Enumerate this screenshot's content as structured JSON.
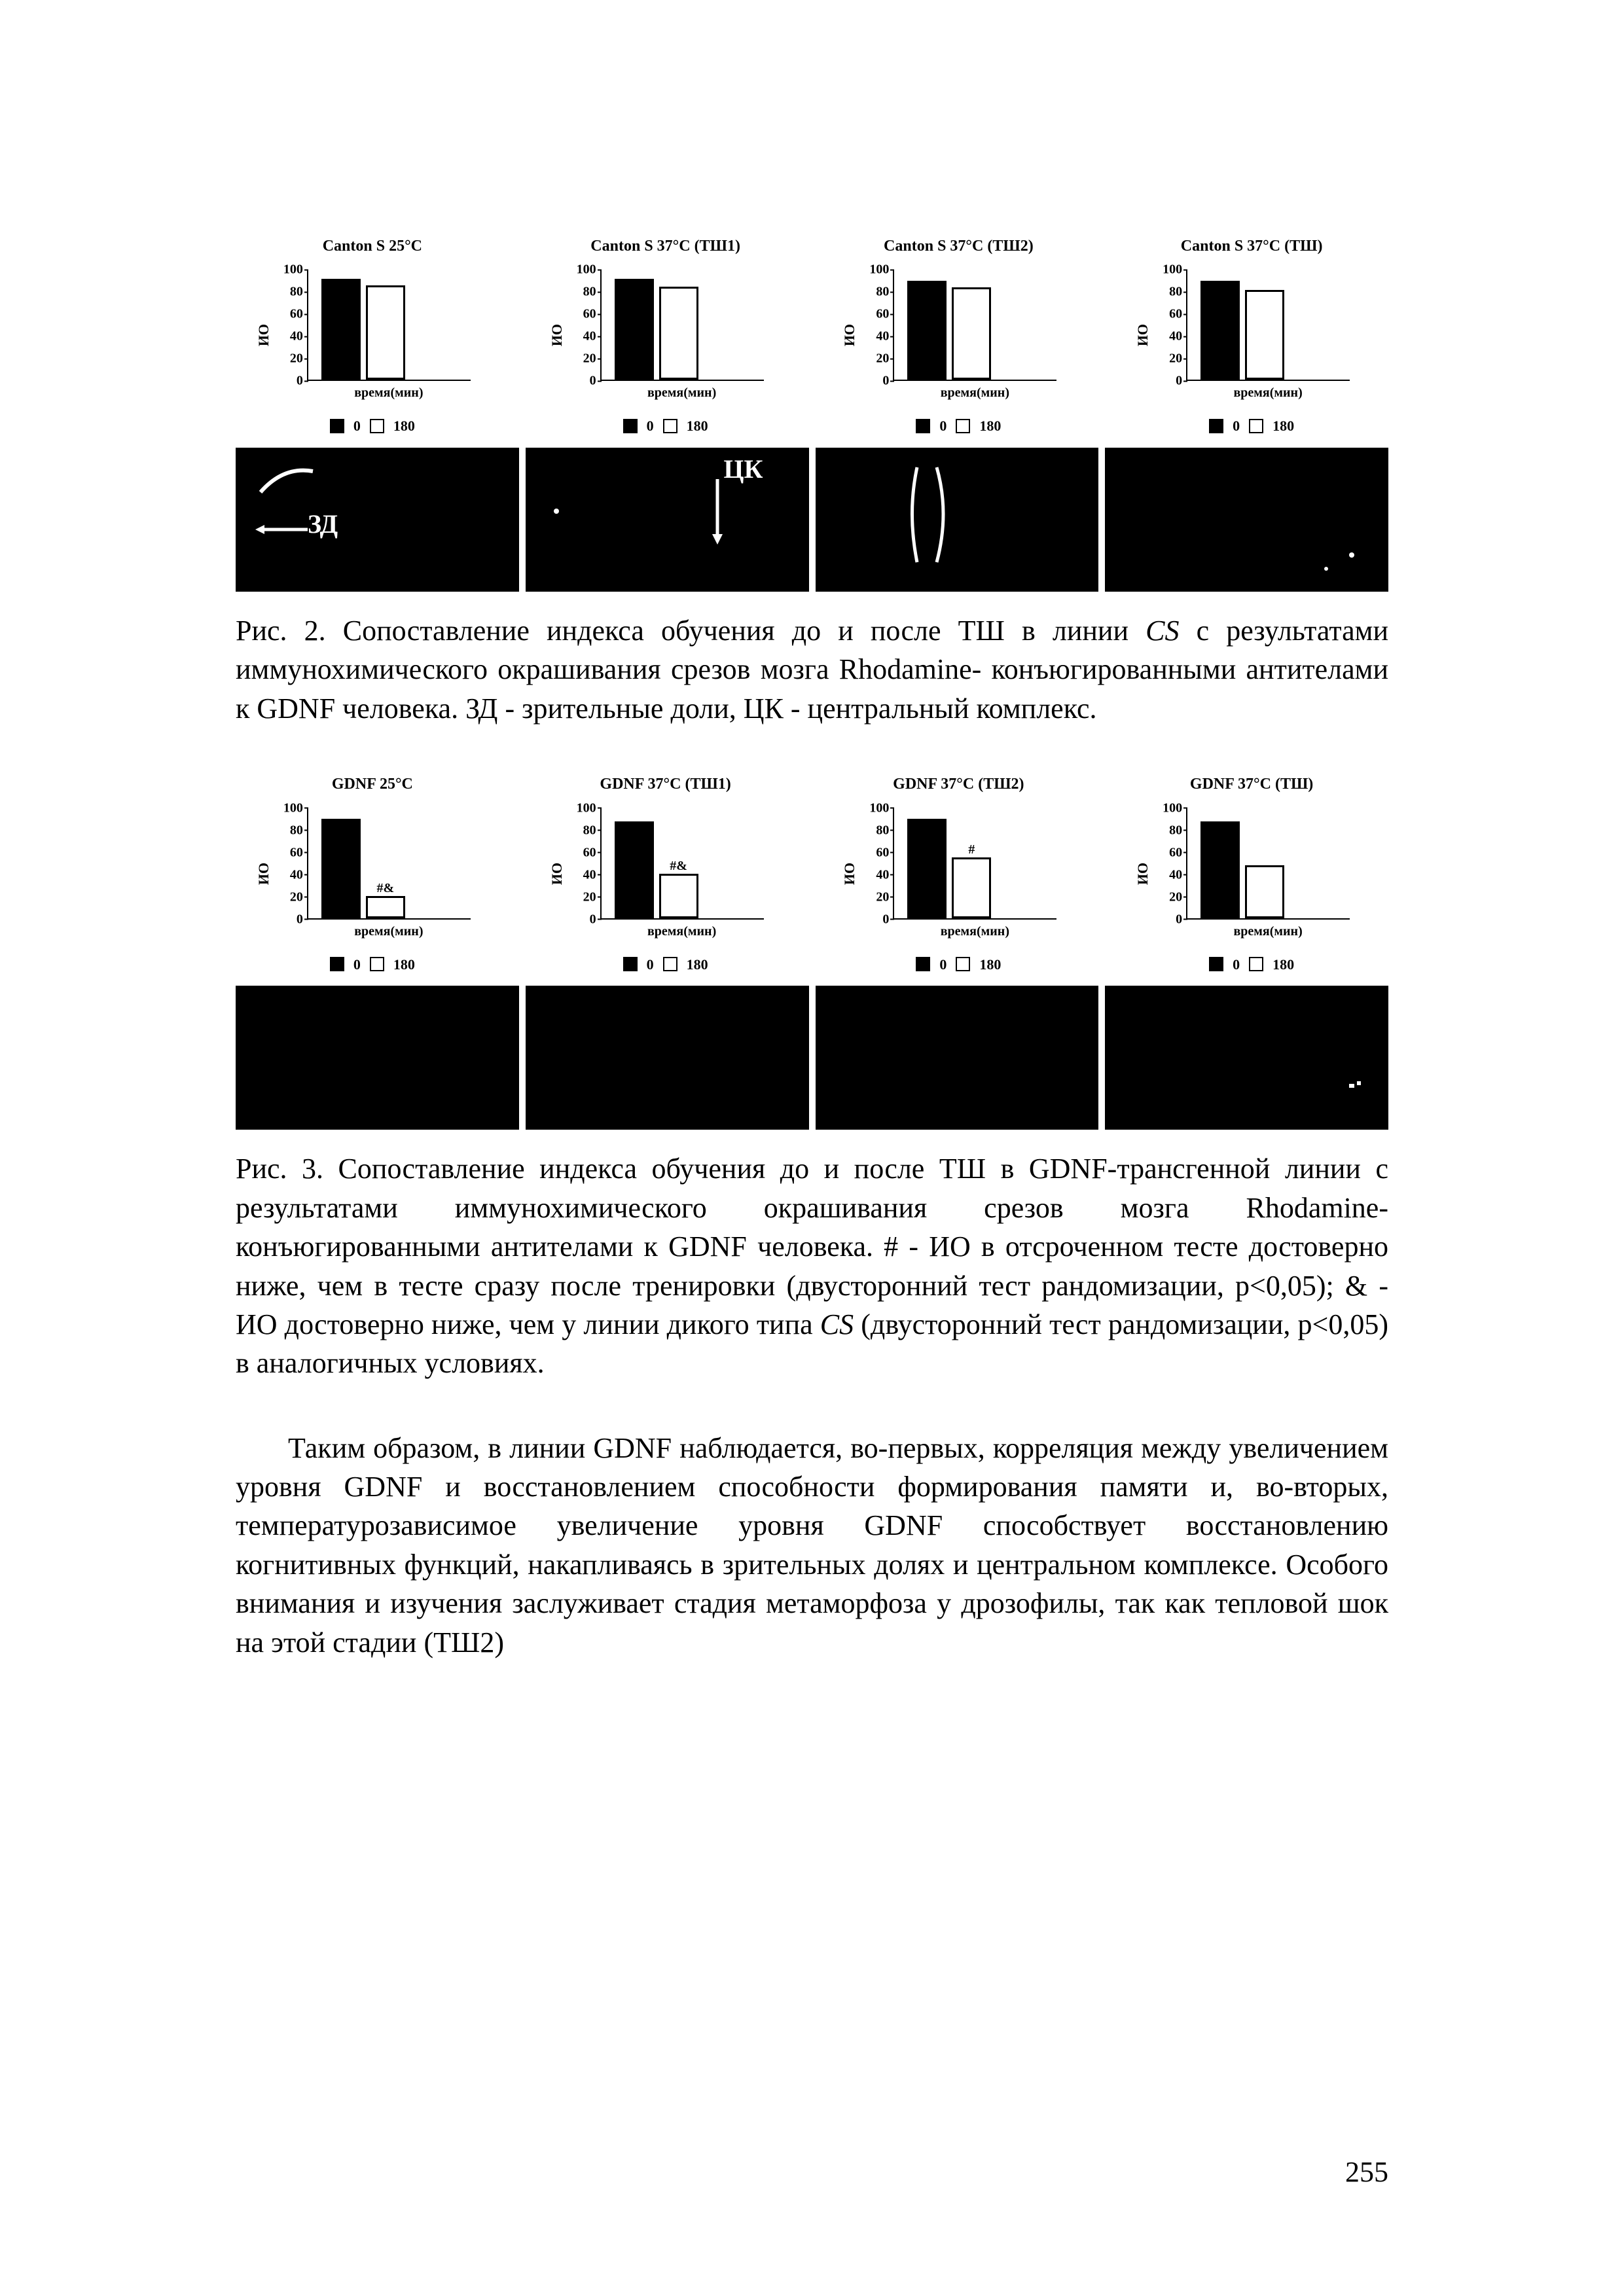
{
  "colors": {
    "page_bg": "#ffffff",
    "text": "#000000",
    "bar_outline": "#000000",
    "bar_fill_0": "#000000",
    "bar_fill_180": "#ffffff",
    "micro_bg": "#000000",
    "micro_text": "#ffffff"
  },
  "typography": {
    "body_family": "Times New Roman",
    "body_size_pt": 33,
    "panel_title_size_pt": 18,
    "tick_size_pt": 15,
    "axis_label_size_pt": 16
  },
  "figure2": {
    "panels": [
      {
        "title": "Canton S 25°C",
        "type": "bar",
        "ylabel": "ИО",
        "xlabel": "время(мин)",
        "ylim": [
          0,
          100
        ],
        "ytick_step": 20,
        "bar_width": 0.55,
        "categories": [
          "0",
          "180"
        ],
        "values": [
          92,
          86
        ],
        "fills": [
          "#000000",
          "#ffffff"
        ],
        "annotations": [
          "",
          ""
        ]
      },
      {
        "title": "Canton S 37°C (ТШ1)",
        "type": "bar",
        "ylabel": "ИО",
        "xlabel": "время(мин)",
        "ylim": [
          0,
          100
        ],
        "ytick_step": 20,
        "bar_width": 0.55,
        "categories": [
          "0",
          "180"
        ],
        "values": [
          92,
          85
        ],
        "fills": [
          "#000000",
          "#ffffff"
        ],
        "annotations": [
          "",
          ""
        ]
      },
      {
        "title": "Canton S 37°C (ТШ2)",
        "type": "bar",
        "ylabel": "ИО",
        "xlabel": "время(мин)",
        "ylim": [
          0,
          100
        ],
        "ytick_step": 20,
        "bar_width": 0.55,
        "categories": [
          "0",
          "180"
        ],
        "values": [
          90,
          84
        ],
        "fills": [
          "#000000",
          "#ffffff"
        ],
        "annotations": [
          "",
          ""
        ]
      },
      {
        "title": "Canton S 37°C (ТШ)",
        "type": "bar",
        "ylabel": "ИО",
        "xlabel": "время(мин)",
        "ylim": [
          0,
          100
        ],
        "ytick_step": 20,
        "bar_width": 0.55,
        "categories": [
          "0",
          "180"
        ],
        "values": [
          90,
          82
        ],
        "fills": [
          "#000000",
          "#ffffff"
        ],
        "annotations": [
          "",
          ""
        ]
      }
    ],
    "legend": {
      "items": [
        {
          "fill": "#000000",
          "label": "0"
        },
        {
          "fill": "#ffffff",
          "label": "180"
        }
      ]
    },
    "micro_labels": {
      "zd": "ЗД",
      "ck": "ЦК"
    },
    "caption_prefix": "Рис. 2. ",
    "caption": "Сопоставление индекса обучения до и после ТШ в линии CS с результатами иммунохимического окрашивания срезов мозга Rhodamine- конъюгированными антителами к GDNF человека. ЗД - зрительные доли, ЦК - центральный комплекс."
  },
  "figure3": {
    "panels": [
      {
        "title": "GDNF 25°C",
        "type": "bar",
        "ylabel": "ИО",
        "xlabel": "время(мин)",
        "ylim": [
          0,
          100
        ],
        "ytick_step": 20,
        "bar_width": 0.55,
        "categories": [
          "0",
          "180"
        ],
        "values": [
          90,
          20
        ],
        "fills": [
          "#000000",
          "#ffffff"
        ],
        "annotations": [
          "",
          "#&"
        ]
      },
      {
        "title": "GDNF 37°C (ТШ1)",
        "type": "bar",
        "ylabel": "ИО",
        "xlabel": "время(мин)",
        "ylim": [
          0,
          100
        ],
        "ytick_step": 20,
        "bar_width": 0.55,
        "categories": [
          "0",
          "180"
        ],
        "values": [
          88,
          40
        ],
        "fills": [
          "#000000",
          "#ffffff"
        ],
        "annotations": [
          "",
          "#&"
        ]
      },
      {
        "title": "GDNF 37°C (ТШ2)",
        "type": "bar",
        "ylabel": "ИО",
        "xlabel": "время(мин)",
        "ylim": [
          0,
          100
        ],
        "ytick_step": 20,
        "bar_width": 0.55,
        "categories": [
          "0",
          "180"
        ],
        "values": [
          90,
          55
        ],
        "fills": [
          "#000000",
          "#ffffff"
        ],
        "annotations": [
          "",
          "#"
        ]
      },
      {
        "title": "GDNF 37°C (ТШ)",
        "type": "bar",
        "ylabel": "ИО",
        "xlabel": "время(мин)",
        "ylim": [
          0,
          100
        ],
        "ytick_step": 20,
        "bar_width": 0.55,
        "categories": [
          "0",
          "180"
        ],
        "values": [
          88,
          48
        ],
        "fills": [
          "#000000",
          "#ffffff"
        ],
        "annotations": [
          "",
          ""
        ]
      }
    ],
    "legend": {
      "items": [
        {
          "fill": "#000000",
          "label": "0"
        },
        {
          "fill": "#ffffff",
          "label": "180"
        }
      ]
    },
    "caption_prefix": "Рис. 3. ",
    "caption": "Сопоставление индекса обучения до и после ТШ в GDNF-трансгенной линии с результатами иммунохимического окрашивания срезов мозга Rhodamine- конъюгированными антителами к GDNF человека. # - ИО в отсроченном тесте достоверно ниже, чем в тесте сразу после тренировки (двусторонний тест рандомизации, p<0,05); & - ИО достоверно ниже, чем у линии дикого типа CS (двусторонний тест рандомизации, p<0,05) в аналогичных условиях."
  },
  "body_paragraph": "Таким образом, в линии GDNF наблюдается, во-первых, корреляция между увеличением уровня GDNF и восстановлением способности формирования памяти и, во-вторых, температурозависимое увеличение уровня GDNF способствует восстановлению когнитивных функций, накапливаясь в зрительных долях и центральном комплексе. Особого внимания и изучения заслуживает стадия метаморфоза у дрозофилы, так как тепловой шок на этой стадии (ТШ2)",
  "page_number": "255"
}
